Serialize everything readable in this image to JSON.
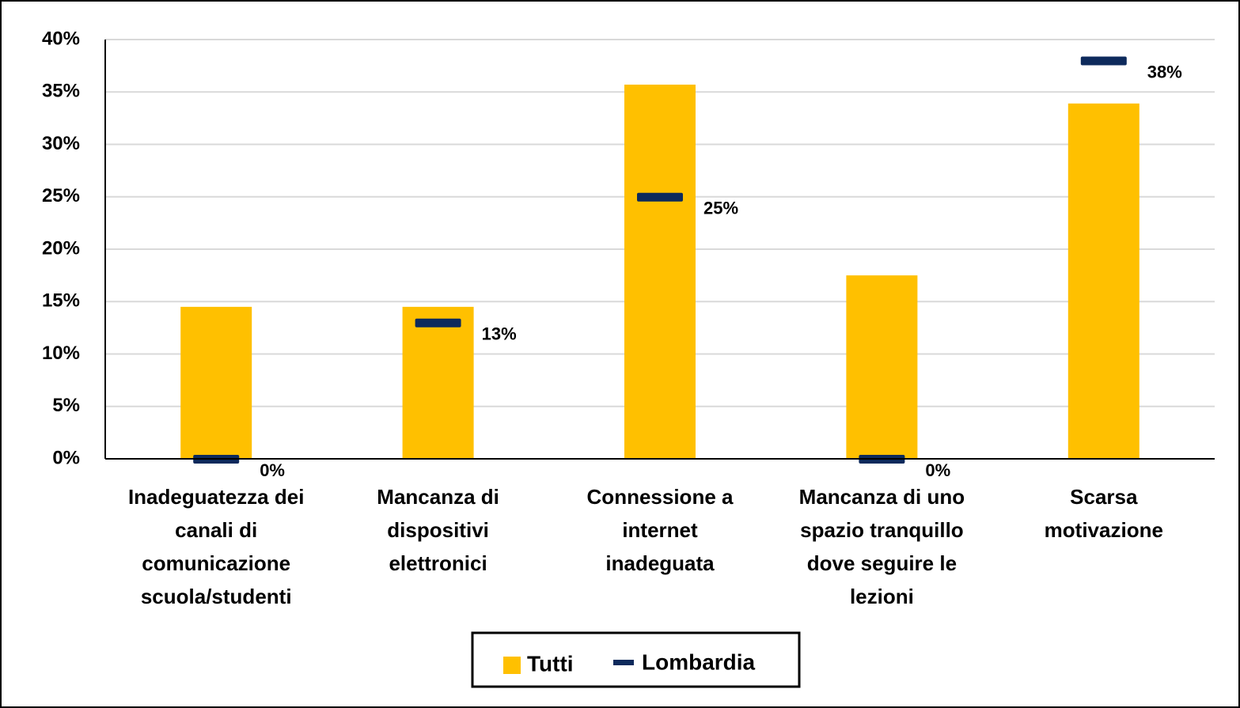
{
  "chart_data": {
    "type": "bar",
    "categories": [
      "Inadeguatezza dei\ncanali di\ncomunicazione\nscuola/studenti",
      "Mancanza di\ndispositivi\nelettronici",
      "Connessione a\ninternet\ninadeguata",
      "Mancanza di uno\nspazio tranquillo\ndove seguire le\nlezioni",
      "Scarsa\nmotivazione"
    ],
    "series": [
      {
        "name": "Tutti",
        "color": "#ffc000",
        "values": [
          14.5,
          14.5,
          35.7,
          17.5,
          33.9
        ]
      },
      {
        "name": "Lombardia",
        "color": "#0d2a5c",
        "values": [
          0,
          13,
          25,
          0,
          38
        ],
        "value_labels": [
          "0%",
          "13%",
          "25%",
          "0%",
          "38%"
        ]
      }
    ],
    "ylim": [
      0,
      40
    ],
    "yticks": [
      {
        "value": 0,
        "label": "0%"
      },
      {
        "value": 5,
        "label": "5%"
      },
      {
        "value": 10,
        "label": "10%"
      },
      {
        "value": 15,
        "label": "15%"
      },
      {
        "value": 20,
        "label": "20%"
      },
      {
        "value": 25,
        "label": "25%"
      },
      {
        "value": 30,
        "label": "30%"
      },
      {
        "value": 35,
        "label": "35%"
      },
      {
        "value": 40,
        "label": "40%"
      }
    ],
    "grid": true,
    "legend": "bottom"
  }
}
